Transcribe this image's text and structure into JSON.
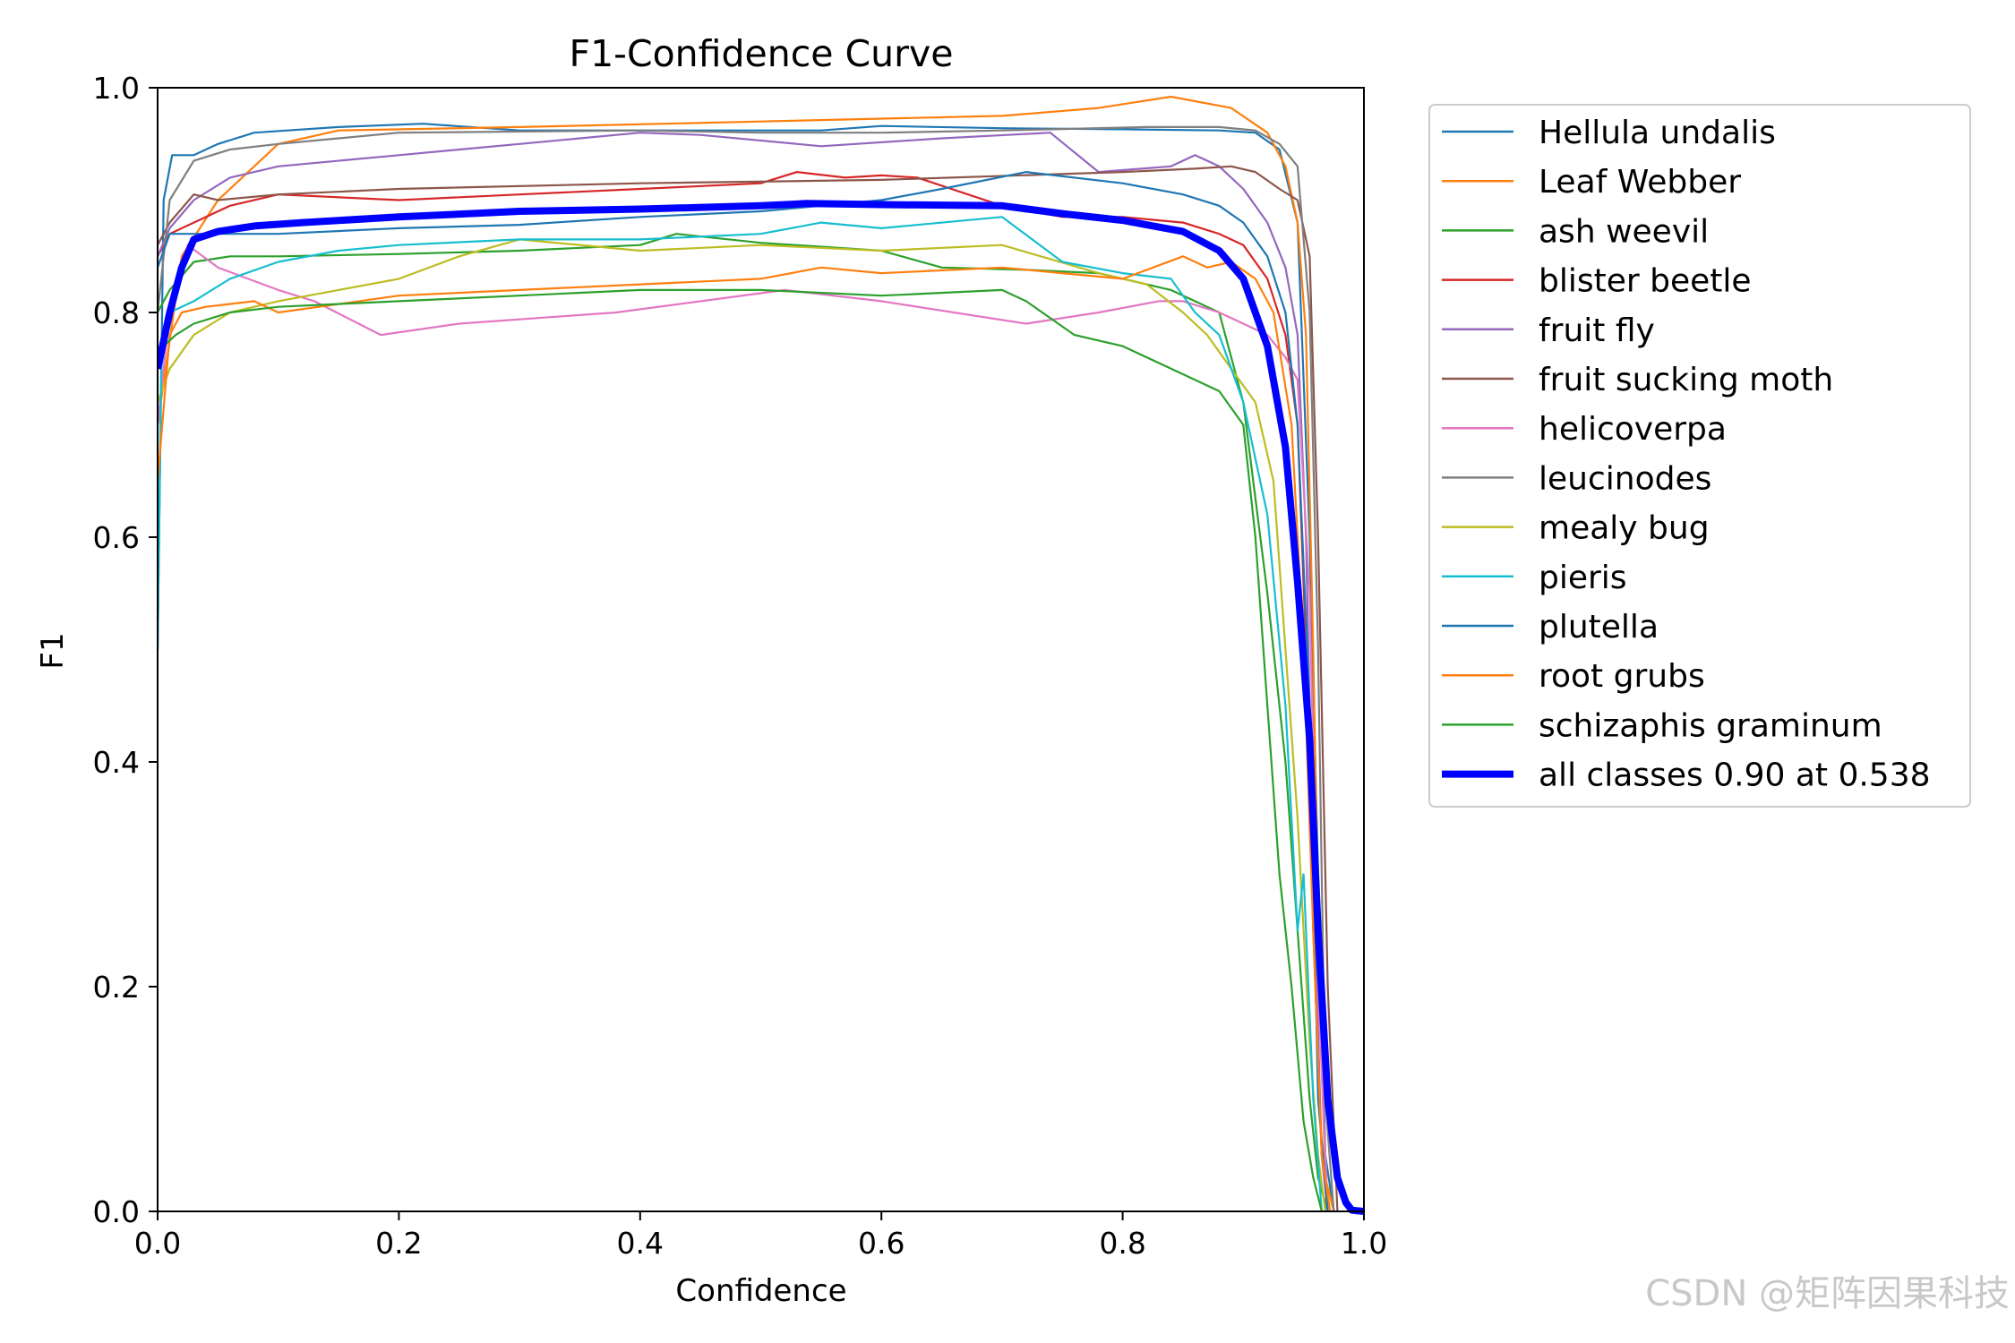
{
  "chart_data": {
    "type": "line",
    "title": "F1-Confidence Curve",
    "xlabel": "Confidence",
    "ylabel": "F1",
    "xlim": [
      0,
      1
    ],
    "ylim": [
      0,
      1
    ],
    "xticks": [
      "0.0",
      "0.2",
      "0.4",
      "0.6",
      "0.8",
      "1.0"
    ],
    "yticks": [
      "0.0",
      "0.2",
      "0.4",
      "0.6",
      "0.8",
      "1.0"
    ],
    "legend_position": "outside-right",
    "grid": false,
    "series": [
      {
        "name": "Hellula undalis",
        "color": "#1f77b4",
        "width": 2.2,
        "x": [
          0,
          0.005,
          0.012,
          0.03,
          0.05,
          0.08,
          0.15,
          0.22,
          0.3,
          0.45,
          0.55,
          0.6,
          0.7,
          0.8,
          0.88,
          0.91,
          0.93,
          0.945,
          0.955,
          0.962,
          0.968,
          0.975
        ],
        "y": [
          0.5,
          0.9,
          0.94,
          0.94,
          0.95,
          0.96,
          0.965,
          0.968,
          0.962,
          0.962,
          0.962,
          0.966,
          0.964,
          0.963,
          0.962,
          0.96,
          0.945,
          0.88,
          0.6,
          0.3,
          0.05,
          0
        ]
      },
      {
        "name": "Leaf Webber",
        "color": "#ff7f0e",
        "width": 2.2,
        "x": [
          0,
          0.02,
          0.05,
          0.1,
          0.15,
          0.3,
          0.5,
          0.7,
          0.78,
          0.84,
          0.89,
          0.92,
          0.935,
          0.945,
          0.952,
          0.958,
          0.963,
          0.968,
          0.975
        ],
        "y": [
          0.7,
          0.85,
          0.9,
          0.95,
          0.962,
          0.965,
          0.97,
          0.975,
          0.982,
          0.992,
          0.982,
          0.96,
          0.93,
          0.88,
          0.78,
          0.5,
          0.2,
          0.03,
          0
        ]
      },
      {
        "name": "ash weevil",
        "color": "#2ca02c",
        "width": 2.2,
        "x": [
          0,
          0.01,
          0.03,
          0.06,
          0.1,
          0.2,
          0.3,
          0.4,
          0.43,
          0.5,
          0.6,
          0.65,
          0.72,
          0.78,
          0.84,
          0.88,
          0.9,
          0.92,
          0.935,
          0.945,
          0.955,
          0.962,
          0.97
        ],
        "y": [
          0.8,
          0.82,
          0.845,
          0.85,
          0.85,
          0.852,
          0.855,
          0.86,
          0.87,
          0.862,
          0.855,
          0.84,
          0.838,
          0.835,
          0.82,
          0.8,
          0.72,
          0.55,
          0.4,
          0.25,
          0.1,
          0.03,
          0
        ]
      },
      {
        "name": "blister beetle",
        "color": "#d62728",
        "width": 2.2,
        "x": [
          0,
          0.01,
          0.03,
          0.06,
          0.1,
          0.2,
          0.3,
          0.4,
          0.5,
          0.53,
          0.57,
          0.6,
          0.63,
          0.7,
          0.75,
          0.8,
          0.85,
          0.88,
          0.9,
          0.92,
          0.935,
          0.945,
          0.952,
          0.958,
          0.965,
          0.97
        ],
        "y": [
          0.85,
          0.87,
          0.88,
          0.895,
          0.905,
          0.9,
          0.905,
          0.91,
          0.915,
          0.925,
          0.92,
          0.922,
          0.92,
          0.895,
          0.885,
          0.885,
          0.88,
          0.87,
          0.86,
          0.83,
          0.78,
          0.7,
          0.5,
          0.25,
          0.05,
          0
        ]
      },
      {
        "name": "fruit fly",
        "color": "#9467bd",
        "width": 2.2,
        "x": [
          0,
          0.01,
          0.03,
          0.06,
          0.1,
          0.2,
          0.25,
          0.3,
          0.35,
          0.4,
          0.45,
          0.55,
          0.65,
          0.74,
          0.78,
          0.84,
          0.86,
          0.88,
          0.9,
          0.92,
          0.935,
          0.945,
          0.952,
          0.958,
          0.965,
          0.97
        ],
        "y": [
          0.85,
          0.875,
          0.9,
          0.92,
          0.93,
          0.94,
          0.945,
          0.95,
          0.955,
          0.96,
          0.958,
          0.948,
          0.955,
          0.96,
          0.925,
          0.93,
          0.94,
          0.93,
          0.91,
          0.88,
          0.84,
          0.78,
          0.6,
          0.3,
          0.05,
          0
        ]
      },
      {
        "name": "fruit sucking moth",
        "color": "#8c564b",
        "width": 2.2,
        "x": [
          0,
          0.01,
          0.03,
          0.05,
          0.1,
          0.2,
          0.4,
          0.6,
          0.8,
          0.86,
          0.89,
          0.91,
          0.93,
          0.945,
          0.955,
          0.962,
          0.97,
          0.978
        ],
        "y": [
          0.86,
          0.88,
          0.905,
          0.9,
          0.905,
          0.91,
          0.915,
          0.918,
          0.925,
          0.928,
          0.93,
          0.925,
          0.91,
          0.9,
          0.85,
          0.6,
          0.2,
          0
        ]
      },
      {
        "name": "helicoverpa",
        "color": "#e377c2",
        "width": 2.2,
        "x": [
          0,
          0.01,
          0.025,
          0.05,
          0.1,
          0.13,
          0.185,
          0.25,
          0.38,
          0.52,
          0.6,
          0.72,
          0.78,
          0.83,
          0.85,
          0.88,
          0.9,
          0.92,
          0.935,
          0.945,
          0.955,
          0.962,
          0.97
        ],
        "y": [
          0.7,
          0.8,
          0.86,
          0.84,
          0.82,
          0.81,
          0.78,
          0.79,
          0.8,
          0.82,
          0.81,
          0.79,
          0.8,
          0.81,
          0.81,
          0.8,
          0.79,
          0.78,
          0.76,
          0.74,
          0.55,
          0.2,
          0
        ]
      },
      {
        "name": "leucinodes",
        "color": "#7f7f7f",
        "width": 2.2,
        "x": [
          0,
          0.01,
          0.03,
          0.06,
          0.1,
          0.15,
          0.2,
          0.4,
          0.5,
          0.6,
          0.7,
          0.82,
          0.88,
          0.91,
          0.93,
          0.945,
          0.955,
          0.962,
          0.968,
          0.975
        ],
        "y": [
          0.8,
          0.9,
          0.935,
          0.945,
          0.95,
          0.955,
          0.96,
          0.962,
          0.96,
          0.96,
          0.962,
          0.965,
          0.965,
          0.962,
          0.95,
          0.93,
          0.8,
          0.5,
          0.1,
          0
        ]
      },
      {
        "name": "mealy bug",
        "color": "#bcbd22",
        "width": 2.2,
        "x": [
          0,
          0.01,
          0.03,
          0.06,
          0.1,
          0.15,
          0.2,
          0.25,
          0.3,
          0.4,
          0.5,
          0.6,
          0.7,
          0.78,
          0.82,
          0.85,
          0.87,
          0.89,
          0.91,
          0.925,
          0.935,
          0.945,
          0.955,
          0.962,
          0.968
        ],
        "y": [
          0.72,
          0.75,
          0.78,
          0.8,
          0.81,
          0.82,
          0.83,
          0.85,
          0.865,
          0.855,
          0.86,
          0.855,
          0.86,
          0.835,
          0.825,
          0.8,
          0.78,
          0.75,
          0.72,
          0.65,
          0.5,
          0.35,
          0.15,
          0.05,
          0
        ]
      },
      {
        "name": "pieris",
        "color": "#17becf",
        "width": 2.2,
        "x": [
          0,
          0.003,
          0.01,
          0.03,
          0.06,
          0.1,
          0.15,
          0.2,
          0.3,
          0.4,
          0.5,
          0.55,
          0.6,
          0.7,
          0.75,
          0.8,
          0.84,
          0.86,
          0.88,
          0.9,
          0.92,
          0.935,
          0.945,
          0.95,
          0.958,
          0.965
        ],
        "y": [
          0.5,
          0.75,
          0.8,
          0.81,
          0.83,
          0.845,
          0.855,
          0.86,
          0.865,
          0.865,
          0.87,
          0.88,
          0.875,
          0.885,
          0.845,
          0.835,
          0.83,
          0.8,
          0.78,
          0.72,
          0.62,
          0.45,
          0.25,
          0.3,
          0.1,
          0
        ]
      },
      {
        "name": "plutella",
        "color": "#1f77b4",
        "width": 2.2,
        "x": [
          0,
          0.01,
          0.03,
          0.1,
          0.2,
          0.3,
          0.4,
          0.5,
          0.6,
          0.65,
          0.72,
          0.8,
          0.85,
          0.88,
          0.9,
          0.92,
          0.935,
          0.945,
          0.955,
          0.962,
          0.97
        ],
        "y": [
          0.84,
          0.87,
          0.87,
          0.87,
          0.875,
          0.878,
          0.885,
          0.89,
          0.9,
          0.91,
          0.925,
          0.915,
          0.905,
          0.895,
          0.88,
          0.85,
          0.8,
          0.7,
          0.45,
          0.1,
          0
        ]
      },
      {
        "name": "root grubs",
        "color": "#ff7f0e",
        "width": 2.2,
        "x": [
          0,
          0.01,
          0.02,
          0.04,
          0.08,
          0.1,
          0.2,
          0.3,
          0.4,
          0.5,
          0.55,
          0.6,
          0.7,
          0.75,
          0.8,
          0.85,
          0.87,
          0.89,
          0.91,
          0.925,
          0.94,
          0.95,
          0.958,
          0.965,
          0.972
        ],
        "y": [
          0.65,
          0.78,
          0.8,
          0.805,
          0.81,
          0.8,
          0.815,
          0.82,
          0.825,
          0.83,
          0.84,
          0.835,
          0.84,
          0.835,
          0.83,
          0.85,
          0.84,
          0.845,
          0.83,
          0.8,
          0.7,
          0.5,
          0.25,
          0.05,
          0
        ]
      },
      {
        "name": "schizaphis graminum",
        "color": "#2ca02c",
        "width": 2.2,
        "x": [
          0,
          0.005,
          0.015,
          0.03,
          0.06,
          0.1,
          0.2,
          0.3,
          0.4,
          0.5,
          0.6,
          0.7,
          0.72,
          0.76,
          0.8,
          0.85,
          0.88,
          0.9,
          0.91,
          0.92,
          0.93,
          0.94,
          0.95,
          0.958,
          0.965
        ],
        "y": [
          0.75,
          0.77,
          0.78,
          0.79,
          0.8,
          0.805,
          0.81,
          0.815,
          0.82,
          0.82,
          0.815,
          0.82,
          0.81,
          0.78,
          0.77,
          0.745,
          0.73,
          0.7,
          0.6,
          0.45,
          0.3,
          0.2,
          0.08,
          0.03,
          0
        ]
      },
      {
        "name": "all classes 0.90 at 0.538",
        "color": "#0000ff",
        "width": 8,
        "x": [
          0,
          0.01,
          0.02,
          0.03,
          0.05,
          0.08,
          0.12,
          0.2,
          0.3,
          0.4,
          0.5,
          0.538,
          0.6,
          0.7,
          0.75,
          0.8,
          0.85,
          0.88,
          0.9,
          0.92,
          0.935,
          0.945,
          0.955,
          0.962,
          0.97,
          0.978,
          0.985,
          0.99,
          1.0
        ],
        "y": [
          0.75,
          0.8,
          0.84,
          0.865,
          0.872,
          0.877,
          0.88,
          0.885,
          0.89,
          0.892,
          0.895,
          0.897,
          0.896,
          0.895,
          0.888,
          0.882,
          0.872,
          0.855,
          0.83,
          0.77,
          0.68,
          0.56,
          0.42,
          0.25,
          0.1,
          0.03,
          0.008,
          0.001,
          0
        ]
      }
    ]
  },
  "watermark": "CSDN @矩阵因果科技"
}
